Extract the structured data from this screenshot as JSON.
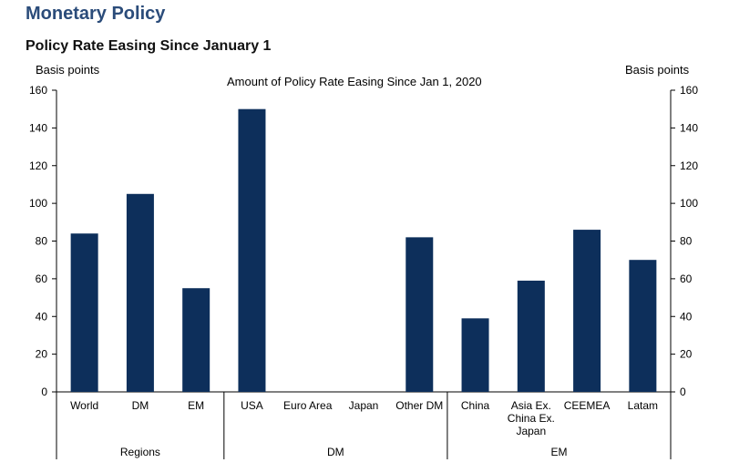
{
  "header": {
    "title": "Monetary Policy",
    "subtitle": "Policy Rate Easing Since January 1"
  },
  "chart_data": {
    "type": "bar",
    "title": "Amount of Policy Rate Easing Since Jan 1, 2020",
    "ylabel_left": "Basis points",
    "ylabel_right": "Basis points",
    "ylim": [
      0,
      160
    ],
    "yticks": [
      0,
      20,
      40,
      60,
      80,
      100,
      120,
      140,
      160
    ],
    "categories": [
      "World",
      "DM",
      "EM",
      "USA",
      "Euro Area",
      "Japan",
      "Other DM",
      "China",
      "Asia Ex. China Ex. Japan",
      "CEEMEA",
      "Latam"
    ],
    "category_lines": [
      [
        "World"
      ],
      [
        "DM"
      ],
      [
        "EM"
      ],
      [
        "USA"
      ],
      [
        "Euro Area"
      ],
      [
        "Japan"
      ],
      [
        "Other DM"
      ],
      [
        "China"
      ],
      [
        "Asia Ex.",
        "China Ex.",
        "Japan"
      ],
      [
        "CEEMEA"
      ],
      [
        "Latam"
      ]
    ],
    "values": [
      84,
      105,
      55,
      150,
      0,
      0,
      82,
      39,
      59,
      86,
      70
    ],
    "groups": [
      {
        "label": "Regions",
        "start": 0,
        "end": 2
      },
      {
        "label": "DM",
        "start": 3,
        "end": 6
      },
      {
        "label": "EM",
        "start": 7,
        "end": 10
      }
    ],
    "bar_color": "#0d2f5b",
    "grid": false,
    "legend": "none"
  }
}
